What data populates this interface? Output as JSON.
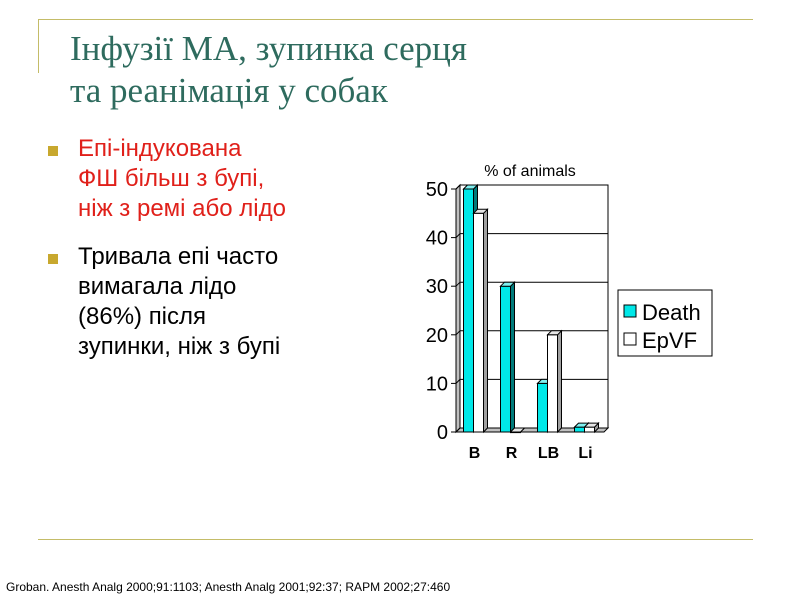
{
  "slide": {
    "title_lines": [
      "Інфузії МА, зупинка серця",
      "та реанімація у собак"
    ],
    "bullets": [
      {
        "text": "Епі-індукована\nФШ більш з бупі,\nніж з ремі або лідо",
        "color": "#e0201a"
      },
      {
        "text": "Тривала епі часто\nвимагала лідо\n(86%) після\nзупинки, ніж з бупі",
        "color": "#000000"
      }
    ],
    "reference": "Groban. Anesth Analg 2000;91:1103; Anesth Analg 2001;92:37; RAPM 2002;27:460",
    "accent_color": "#c4bc68",
    "title_color": "#2e6b5e",
    "bullet_marker_color": "#c8a82e"
  },
  "chart_data": {
    "type": "bar",
    "title": "% of animals",
    "categories": [
      "B",
      "R",
      "LB",
      "Li"
    ],
    "series": [
      {
        "name": "Death",
        "values": [
          50,
          30,
          10,
          1
        ],
        "color": "#00e8e8"
      },
      {
        "name": "EpVF",
        "values": [
          45,
          0,
          20,
          1
        ],
        "color": "#ffffff"
      }
    ],
    "ylim": [
      0,
      50
    ],
    "yticks": [
      "0",
      "10",
      "20",
      "30",
      "40",
      "50"
    ],
    "grid": true,
    "legend_position": "right",
    "style": "3d"
  }
}
